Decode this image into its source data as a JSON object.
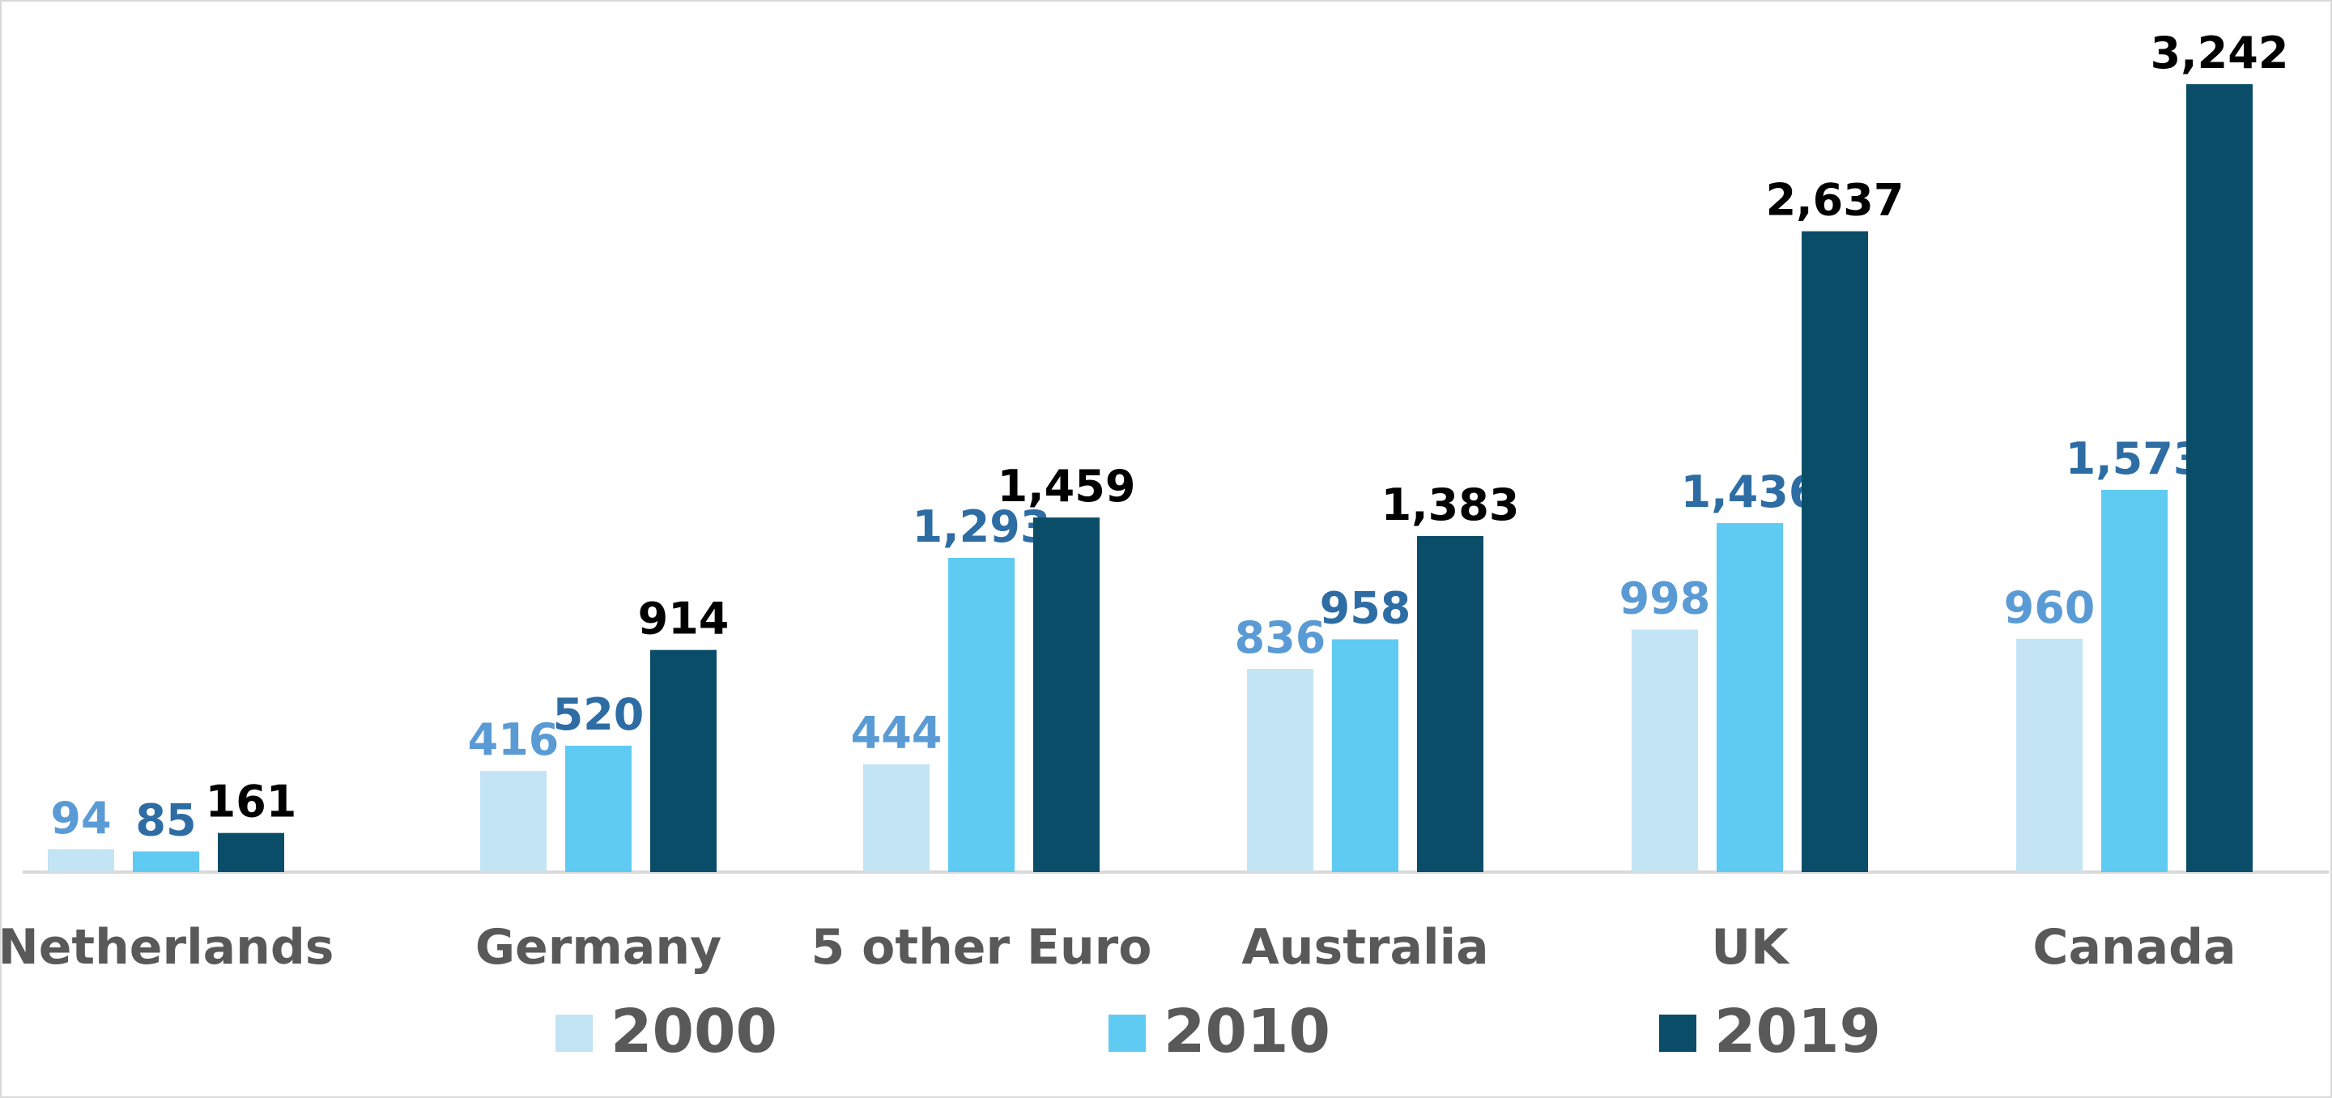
{
  "chart_data": {
    "type": "bar",
    "categories": [
      "Netherlands",
      "Germany",
      "5 other Euro",
      "Australia",
      "UK",
      "Canada"
    ],
    "series": [
      {
        "name": "2000",
        "values": [
          94,
          416,
          444,
          836,
          998,
          960
        ],
        "color": "#c3e4f4",
        "label_color": "#5b9bd5"
      },
      {
        "name": "2010",
        "values": [
          85,
          520,
          1293,
          958,
          1436,
          1573
        ],
        "color": "#5fcaf2",
        "label_color": "#2e6da4"
      },
      {
        "name": "2019",
        "values": [
          161,
          914,
          1459,
          1383,
          2637,
          3242
        ],
        "color": "#0a4d68",
        "label_color": "#000000"
      }
    ],
    "value_labels": [
      [
        "94",
        "416",
        "444",
        "836",
        "998",
        "960"
      ],
      [
        "85",
        "520",
        "1,293",
        "958",
        "1,436",
        "1,573"
      ],
      [
        "161",
        "914",
        "1,459",
        "1,383",
        "2,637",
        "3,242"
      ]
    ],
    "title": "",
    "xlabel": "",
    "ylabel": "",
    "ylim": [
      0,
      3300
    ],
    "grid": false,
    "legend_position": "bottom",
    "axis_line_color": "#d9d9d9"
  }
}
